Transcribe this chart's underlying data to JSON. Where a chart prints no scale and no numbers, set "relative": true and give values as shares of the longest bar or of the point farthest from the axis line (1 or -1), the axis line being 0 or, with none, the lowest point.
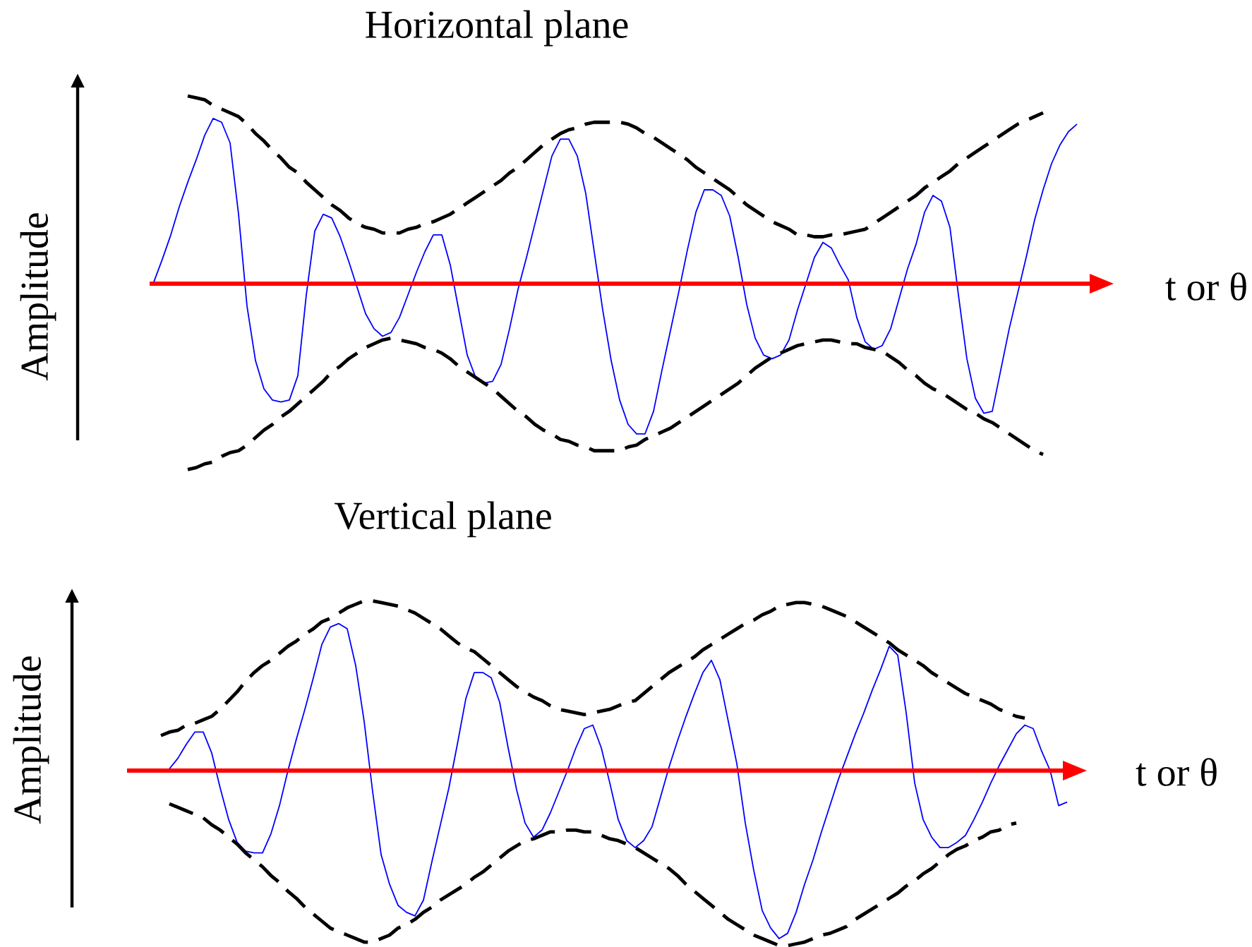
{
  "chart_data": [
    {
      "type": "line",
      "title": "Horizontal plane",
      "xlabel": "t or θ",
      "ylabel": "Amplitude",
      "relative": true,
      "categories": [
        null,
        null,
        null,
        null,
        null,
        null,
        null,
        null,
        null,
        null,
        null,
        null,
        null,
        null,
        null,
        null,
        null,
        null,
        null,
        null,
        null,
        null,
        null,
        null,
        null,
        null,
        null,
        null,
        null,
        null,
        null,
        null,
        null,
        null,
        null,
        null,
        null,
        null,
        null,
        null,
        null,
        null,
        null,
        null,
        null,
        null,
        null,
        null,
        null,
        null,
        null,
        null,
        null,
        null,
        null,
        null,
        null,
        null,
        null,
        null,
        null,
        null,
        null,
        null,
        null,
        null,
        null,
        null,
        null,
        null,
        null,
        null,
        null,
        null,
        null,
        null,
        null,
        null,
        null,
        null,
        null,
        null,
        null,
        null,
        null,
        null,
        null,
        null,
        null,
        null,
        null,
        null,
        null,
        null,
        null,
        null,
        null,
        null,
        null,
        null,
        null,
        null,
        null,
        null,
        null,
        null,
        null,
        null,
        null,
        null
      ],
      "series": [
        {
          "color": "#0000ff",
          "values": [
            0.01,
            0.13,
            0.26,
            0.41,
            0.54,
            0.66,
            0.79,
            0.88,
            0.86,
            0.75,
            0.37,
            -0.12,
            -0.41,
            -0.56,
            -0.62,
            -0.63,
            -0.62,
            -0.49,
            -0.06,
            0.28,
            0.37,
            0.35,
            0.25,
            0.12,
            -0.02,
            -0.16,
            -0.24,
            -0.28,
            -0.26,
            -0.18,
            -0.06,
            0.06,
            0.17,
            0.26,
            0.26,
            0.1,
            -0.14,
            -0.38,
            -0.5,
            -0.53,
            -0.52,
            -0.43,
            -0.24,
            -0.03,
            0.14,
            0.32,
            0.5,
            0.68,
            0.77,
            0.77,
            0.68,
            0.48,
            0.17,
            -0.14,
            -0.41,
            -0.62,
            -0.75,
            -0.8,
            -0.8,
            -0.68,
            -0.46,
            -0.25,
            -0.04,
            0.18,
            0.38,
            0.5,
            0.5,
            0.47,
            0.36,
            0.14,
            -0.11,
            -0.29,
            -0.38,
            -0.4,
            -0.38,
            -0.3,
            -0.14,
            0.0,
            0.14,
            0.22,
            0.19,
            0.1,
            0.02,
            -0.18,
            -0.31,
            -0.35,
            -0.33,
            -0.24,
            -0.08,
            0.08,
            0.21,
            0.38,
            0.47,
            0.44,
            0.3,
            -0.06,
            -0.4,
            -0.61,
            -0.69,
            -0.68,
            -0.46,
            -0.24,
            -0.05,
            0.14,
            0.34,
            0.5,
            0.64,
            0.74,
            0.81,
            0.85
          ]
        },
        {
          "color": "#000000",
          "line_style": "dashed",
          "values": [
            null,
            null,
            null,
            null,
            1.0,
            0.99,
            0.98,
            0.95,
            0.93,
            0.91,
            0.89,
            0.85,
            0.8,
            0.76,
            0.71,
            0.67,
            0.62,
            0.59,
            0.54,
            0.5,
            0.46,
            0.42,
            0.39,
            0.35,
            0.32,
            0.3,
            0.29,
            0.27,
            0.27,
            0.27,
            0.29,
            0.3,
            0.32,
            0.33,
            0.35,
            0.37,
            0.4,
            0.43,
            0.46,
            0.49,
            0.52,
            0.55,
            0.59,
            0.62,
            0.66,
            0.7,
            0.74,
            0.77,
            0.8,
            0.82,
            0.83,
            0.85,
            0.86,
            0.86,
            0.86,
            0.86,
            0.85,
            0.83,
            0.8,
            0.78,
            0.75,
            0.72,
            0.69,
            0.66,
            0.62,
            0.59,
            0.56,
            0.53,
            0.5,
            0.46,
            0.42,
            0.39,
            0.36,
            0.33,
            0.31,
            0.29,
            0.26,
            0.26,
            0.25,
            0.25,
            0.26,
            0.26,
            0.27,
            0.28,
            0.29,
            0.32,
            0.35,
            0.38,
            0.41,
            0.44,
            0.47,
            0.51,
            0.54,
            0.57,
            0.6,
            0.64,
            0.67,
            0.7,
            0.73,
            0.76,
            0.79,
            0.82,
            0.85,
            0.87,
            0.89,
            0.91,
            null,
            null,
            null,
            null
          ]
        },
        {
          "color": "#000000",
          "line_style": "dashed",
          "values": [
            null,
            null,
            null,
            null,
            -0.99,
            -0.98,
            -0.96,
            -0.95,
            -0.92,
            -0.9,
            -0.89,
            -0.86,
            -0.82,
            -0.78,
            -0.75,
            -0.71,
            -0.68,
            -0.64,
            -0.6,
            -0.56,
            -0.52,
            -0.47,
            -0.44,
            -0.4,
            -0.37,
            -0.34,
            -0.32,
            -0.3,
            -0.29,
            -0.3,
            -0.31,
            -0.32,
            -0.34,
            -0.35,
            -0.37,
            -0.4,
            -0.44,
            -0.47,
            -0.5,
            -0.53,
            -0.56,
            -0.6,
            -0.64,
            -0.68,
            -0.71,
            -0.75,
            -0.78,
            -0.8,
            -0.83,
            -0.84,
            -0.86,
            -0.87,
            -0.89,
            -0.89,
            -0.89,
            -0.89,
            -0.87,
            -0.86,
            -0.83,
            -0.81,
            -0.79,
            -0.77,
            -0.74,
            -0.71,
            -0.68,
            -0.65,
            -0.62,
            -0.59,
            -0.56,
            -0.53,
            -0.49,
            -0.45,
            -0.42,
            -0.39,
            -0.37,
            -0.35,
            -0.33,
            -0.32,
            -0.31,
            -0.3,
            -0.3,
            -0.31,
            -0.32,
            -0.32,
            -0.34,
            -0.35,
            -0.36,
            -0.39,
            -0.42,
            -0.46,
            -0.49,
            -0.53,
            -0.56,
            -0.58,
            -0.61,
            -0.64,
            -0.67,
            -0.69,
            -0.72,
            -0.74,
            -0.77,
            -0.8,
            -0.83,
            -0.86,
            -0.89,
            -0.91,
            null,
            null,
            null,
            null
          ]
        }
      ],
      "ref_lines": [
        {
          "axis": "y",
          "value": 0,
          "color": "#ff0000"
        }
      ]
    },
    {
      "type": "line",
      "title": "Vertical plane",
      "xlabel": "t or θ",
      "ylabel": "Amplitude",
      "relative": true,
      "categories": [
        null,
        null,
        null,
        null,
        null,
        null,
        null,
        null,
        null,
        null,
        null,
        null,
        null,
        null,
        null,
        null,
        null,
        null,
        null,
        null,
        null,
        null,
        null,
        null,
        null,
        null,
        null,
        null,
        null,
        null,
        null,
        null,
        null,
        null,
        null,
        null,
        null,
        null,
        null,
        null,
        null,
        null,
        null,
        null,
        null,
        null,
        null,
        null,
        null,
        null,
        null,
        null,
        null,
        null,
        null,
        null,
        null,
        null,
        null,
        null,
        null,
        null,
        null,
        null,
        null,
        null,
        null,
        null,
        null,
        null,
        null,
        null,
        null,
        null,
        null,
        null,
        null,
        null,
        null,
        null,
        null,
        null,
        null,
        null,
        null,
        null,
        null,
        null,
        null,
        null,
        null,
        null,
        null,
        null,
        null,
        null,
        null,
        null,
        null,
        null,
        null,
        null,
        null,
        null,
        null,
        null,
        null,
        null
      ],
      "series": [
        {
          "color": "#0000ff",
          "values": [
            null,
            0.01,
            0.07,
            0.15,
            0.22,
            0.22,
            0.1,
            -0.1,
            -0.28,
            -0.41,
            -0.46,
            -0.47,
            -0.47,
            -0.36,
            -0.2,
            0.0,
            0.18,
            0.35,
            0.53,
            0.72,
            0.82,
            0.84,
            0.81,
            0.6,
            0.28,
            -0.12,
            -0.48,
            -0.65,
            -0.77,
            -0.81,
            -0.83,
            -0.74,
            -0.52,
            -0.31,
            -0.1,
            0.15,
            0.41,
            0.56,
            0.56,
            0.53,
            0.39,
            0.13,
            -0.11,
            -0.3,
            -0.38,
            -0.34,
            -0.24,
            -0.12,
            0.0,
            0.13,
            0.24,
            0.26,
            0.13,
            -0.07,
            -0.28,
            -0.4,
            -0.44,
            -0.4,
            -0.32,
            -0.15,
            0.02,
            0.17,
            0.31,
            0.44,
            0.56,
            0.63,
            0.52,
            0.28,
            0.04,
            -0.3,
            -0.57,
            -0.8,
            -0.9,
            -0.96,
            -0.93,
            -0.81,
            -0.65,
            -0.51,
            -0.35,
            -0.2,
            -0.05,
            0.08,
            0.21,
            0.33,
            0.46,
            0.58,
            0.71,
            0.66,
            0.33,
            -0.07,
            -0.28,
            -0.38,
            -0.44,
            -0.44,
            -0.41,
            -0.37,
            -0.28,
            -0.18,
            -0.07,
            0.03,
            0.12,
            0.21,
            0.26,
            0.24,
            0.11,
            0.0,
            -0.2,
            -0.18
          ]
        },
        {
          "color": "#000000",
          "line_style": "dashed",
          "values": [
            0.2,
            0.22,
            0.23,
            0.26,
            0.27,
            0.29,
            0.31,
            0.35,
            0.4,
            0.45,
            0.51,
            0.56,
            0.6,
            0.63,
            0.67,
            0.71,
            0.74,
            0.78,
            0.81,
            0.85,
            0.87,
            0.9,
            0.93,
            0.95,
            0.97,
            0.97,
            0.96,
            0.95,
            0.94,
            0.92,
            0.9,
            0.87,
            0.84,
            0.81,
            0.77,
            0.73,
            0.7,
            0.68,
            0.64,
            0.6,
            0.56,
            0.52,
            0.48,
            0.45,
            0.42,
            0.4,
            0.37,
            0.35,
            0.34,
            0.33,
            0.32,
            0.33,
            0.34,
            0.35,
            0.37,
            0.39,
            0.4,
            0.44,
            0.48,
            0.52,
            0.56,
            0.59,
            0.62,
            0.65,
            0.69,
            0.72,
            0.75,
            0.78,
            0.81,
            0.84,
            0.86,
            0.89,
            0.91,
            0.94,
            0.95,
            0.96,
            0.96,
            0.95,
            0.94,
            0.92,
            0.9,
            0.88,
            0.85,
            0.82,
            0.79,
            0.76,
            0.73,
            0.69,
            0.66,
            0.63,
            0.6,
            0.56,
            0.53,
            0.5,
            0.47,
            0.44,
            0.42,
            0.4,
            0.38,
            0.35,
            0.33,
            0.31,
            0.3,
            null,
            null,
            null,
            null,
            null
          ]
        },
        {
          "color": "#000000",
          "line_style": "dashed",
          "values": [
            null,
            -0.19,
            -0.21,
            -0.23,
            -0.25,
            -0.27,
            -0.31,
            -0.34,
            -0.38,
            -0.42,
            -0.47,
            -0.51,
            -0.55,
            -0.6,
            -0.64,
            -0.69,
            -0.73,
            -0.78,
            -0.82,
            -0.86,
            -0.9,
            -0.92,
            -0.94,
            -0.96,
            -0.98,
            -0.98,
            -0.96,
            -0.94,
            -0.9,
            -0.88,
            -0.85,
            -0.81,
            -0.78,
            -0.74,
            -0.71,
            -0.68,
            -0.65,
            -0.61,
            -0.58,
            -0.54,
            -0.5,
            -0.46,
            -0.43,
            -0.4,
            -0.39,
            -0.37,
            -0.35,
            -0.35,
            -0.34,
            -0.34,
            -0.35,
            -0.35,
            -0.37,
            -0.39,
            -0.4,
            -0.42,
            -0.44,
            -0.47,
            -0.5,
            -0.53,
            -0.56,
            -0.6,
            -0.65,
            -0.69,
            -0.73,
            -0.77,
            -0.81,
            -0.85,
            -0.88,
            -0.91,
            -0.94,
            -0.96,
            -0.98,
            -1.0,
            -1.0,
            -0.99,
            -0.98,
            -0.96,
            -0.94,
            -0.93,
            -0.91,
            -0.89,
            -0.85,
            -0.82,
            -0.79,
            -0.76,
            -0.73,
            -0.7,
            -0.66,
            -0.63,
            -0.59,
            -0.56,
            -0.52,
            -0.48,
            -0.45,
            -0.43,
            -0.4,
            -0.38,
            -0.35,
            -0.34,
            -0.31,
            -0.3,
            null,
            null,
            null,
            null,
            null,
            null
          ]
        }
      ],
      "ref_lines": [
        {
          "axis": "y",
          "value": 0,
          "color": "#ff0000"
        }
      ]
    }
  ]
}
